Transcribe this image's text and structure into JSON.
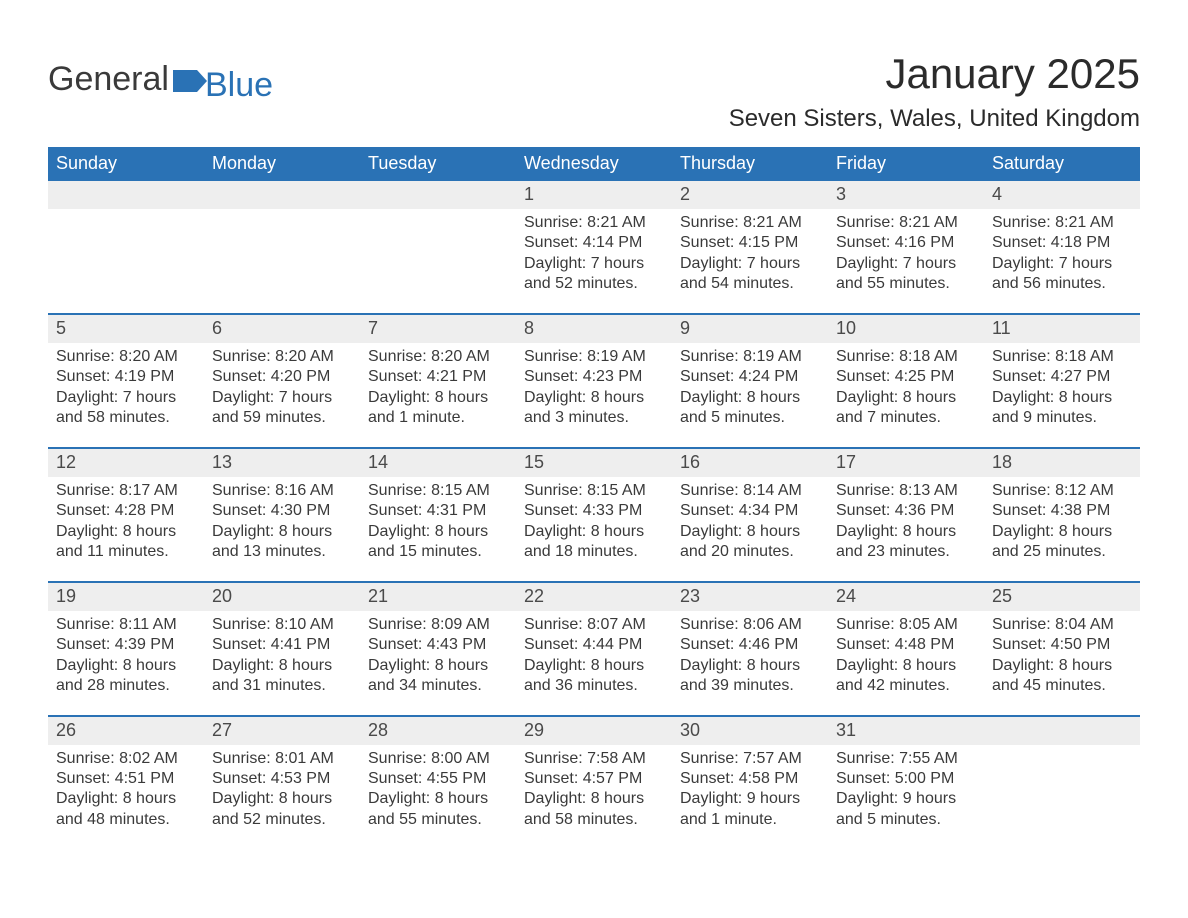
{
  "logo": {
    "text_general": "General",
    "text_blue": "Blue",
    "accent_color": "#2a72b5"
  },
  "title": "January 2025",
  "subtitle": "Seven Sisters, Wales, United Kingdom",
  "colors": {
    "header_bg": "#2a72b5",
    "header_fg": "#ffffff",
    "band_bg": "#eeeeee",
    "text": "#3a3a3a",
    "rule": "#2a72b5",
    "page_bg": "#ffffff"
  },
  "typography": {
    "title_fontsize": 42,
    "subtitle_fontsize": 24,
    "weekday_fontsize": 18,
    "daynum_fontsize": 18,
    "body_fontsize": 16,
    "font_family": "Arial"
  },
  "labels": {
    "sunrise_prefix": "Sunrise: ",
    "sunset_prefix": "Sunset: ",
    "daylight_prefix": "Daylight: "
  },
  "weekdays": [
    "Sunday",
    "Monday",
    "Tuesday",
    "Wednesday",
    "Thursday",
    "Friday",
    "Saturday"
  ],
  "weeks": [
    [
      null,
      null,
      null,
      {
        "day": "1",
        "sunrise": "8:21 AM",
        "sunset": "4:14 PM",
        "daylight": "7 hours and 52 minutes."
      },
      {
        "day": "2",
        "sunrise": "8:21 AM",
        "sunset": "4:15 PM",
        "daylight": "7 hours and 54 minutes."
      },
      {
        "day": "3",
        "sunrise": "8:21 AM",
        "sunset": "4:16 PM",
        "daylight": "7 hours and 55 minutes."
      },
      {
        "day": "4",
        "sunrise": "8:21 AM",
        "sunset": "4:18 PM",
        "daylight": "7 hours and 56 minutes."
      }
    ],
    [
      {
        "day": "5",
        "sunrise": "8:20 AM",
        "sunset": "4:19 PM",
        "daylight": "7 hours and 58 minutes."
      },
      {
        "day": "6",
        "sunrise": "8:20 AM",
        "sunset": "4:20 PM",
        "daylight": "7 hours and 59 minutes."
      },
      {
        "day": "7",
        "sunrise": "8:20 AM",
        "sunset": "4:21 PM",
        "daylight": "8 hours and 1 minute."
      },
      {
        "day": "8",
        "sunrise": "8:19 AM",
        "sunset": "4:23 PM",
        "daylight": "8 hours and 3 minutes."
      },
      {
        "day": "9",
        "sunrise": "8:19 AM",
        "sunset": "4:24 PM",
        "daylight": "8 hours and 5 minutes."
      },
      {
        "day": "10",
        "sunrise": "8:18 AM",
        "sunset": "4:25 PM",
        "daylight": "8 hours and 7 minutes."
      },
      {
        "day": "11",
        "sunrise": "8:18 AM",
        "sunset": "4:27 PM",
        "daylight": "8 hours and 9 minutes."
      }
    ],
    [
      {
        "day": "12",
        "sunrise": "8:17 AM",
        "sunset": "4:28 PM",
        "daylight": "8 hours and 11 minutes."
      },
      {
        "day": "13",
        "sunrise": "8:16 AM",
        "sunset": "4:30 PM",
        "daylight": "8 hours and 13 minutes."
      },
      {
        "day": "14",
        "sunrise": "8:15 AM",
        "sunset": "4:31 PM",
        "daylight": "8 hours and 15 minutes."
      },
      {
        "day": "15",
        "sunrise": "8:15 AM",
        "sunset": "4:33 PM",
        "daylight": "8 hours and 18 minutes."
      },
      {
        "day": "16",
        "sunrise": "8:14 AM",
        "sunset": "4:34 PM",
        "daylight": "8 hours and 20 minutes."
      },
      {
        "day": "17",
        "sunrise": "8:13 AM",
        "sunset": "4:36 PM",
        "daylight": "8 hours and 23 minutes."
      },
      {
        "day": "18",
        "sunrise": "8:12 AM",
        "sunset": "4:38 PM",
        "daylight": "8 hours and 25 minutes."
      }
    ],
    [
      {
        "day": "19",
        "sunrise": "8:11 AM",
        "sunset": "4:39 PM",
        "daylight": "8 hours and 28 minutes."
      },
      {
        "day": "20",
        "sunrise": "8:10 AM",
        "sunset": "4:41 PM",
        "daylight": "8 hours and 31 minutes."
      },
      {
        "day": "21",
        "sunrise": "8:09 AM",
        "sunset": "4:43 PM",
        "daylight": "8 hours and 34 minutes."
      },
      {
        "day": "22",
        "sunrise": "8:07 AM",
        "sunset": "4:44 PM",
        "daylight": "8 hours and 36 minutes."
      },
      {
        "day": "23",
        "sunrise": "8:06 AM",
        "sunset": "4:46 PM",
        "daylight": "8 hours and 39 minutes."
      },
      {
        "day": "24",
        "sunrise": "8:05 AM",
        "sunset": "4:48 PM",
        "daylight": "8 hours and 42 minutes."
      },
      {
        "day": "25",
        "sunrise": "8:04 AM",
        "sunset": "4:50 PM",
        "daylight": "8 hours and 45 minutes."
      }
    ],
    [
      {
        "day": "26",
        "sunrise": "8:02 AM",
        "sunset": "4:51 PM",
        "daylight": "8 hours and 48 minutes."
      },
      {
        "day": "27",
        "sunrise": "8:01 AM",
        "sunset": "4:53 PM",
        "daylight": "8 hours and 52 minutes."
      },
      {
        "day": "28",
        "sunrise": "8:00 AM",
        "sunset": "4:55 PM",
        "daylight": "8 hours and 55 minutes."
      },
      {
        "day": "29",
        "sunrise": "7:58 AM",
        "sunset": "4:57 PM",
        "daylight": "8 hours and 58 minutes."
      },
      {
        "day": "30",
        "sunrise": "7:57 AM",
        "sunset": "4:58 PM",
        "daylight": "9 hours and 1 minute."
      },
      {
        "day": "31",
        "sunrise": "7:55 AM",
        "sunset": "5:00 PM",
        "daylight": "9 hours and 5 minutes."
      },
      null
    ]
  ]
}
